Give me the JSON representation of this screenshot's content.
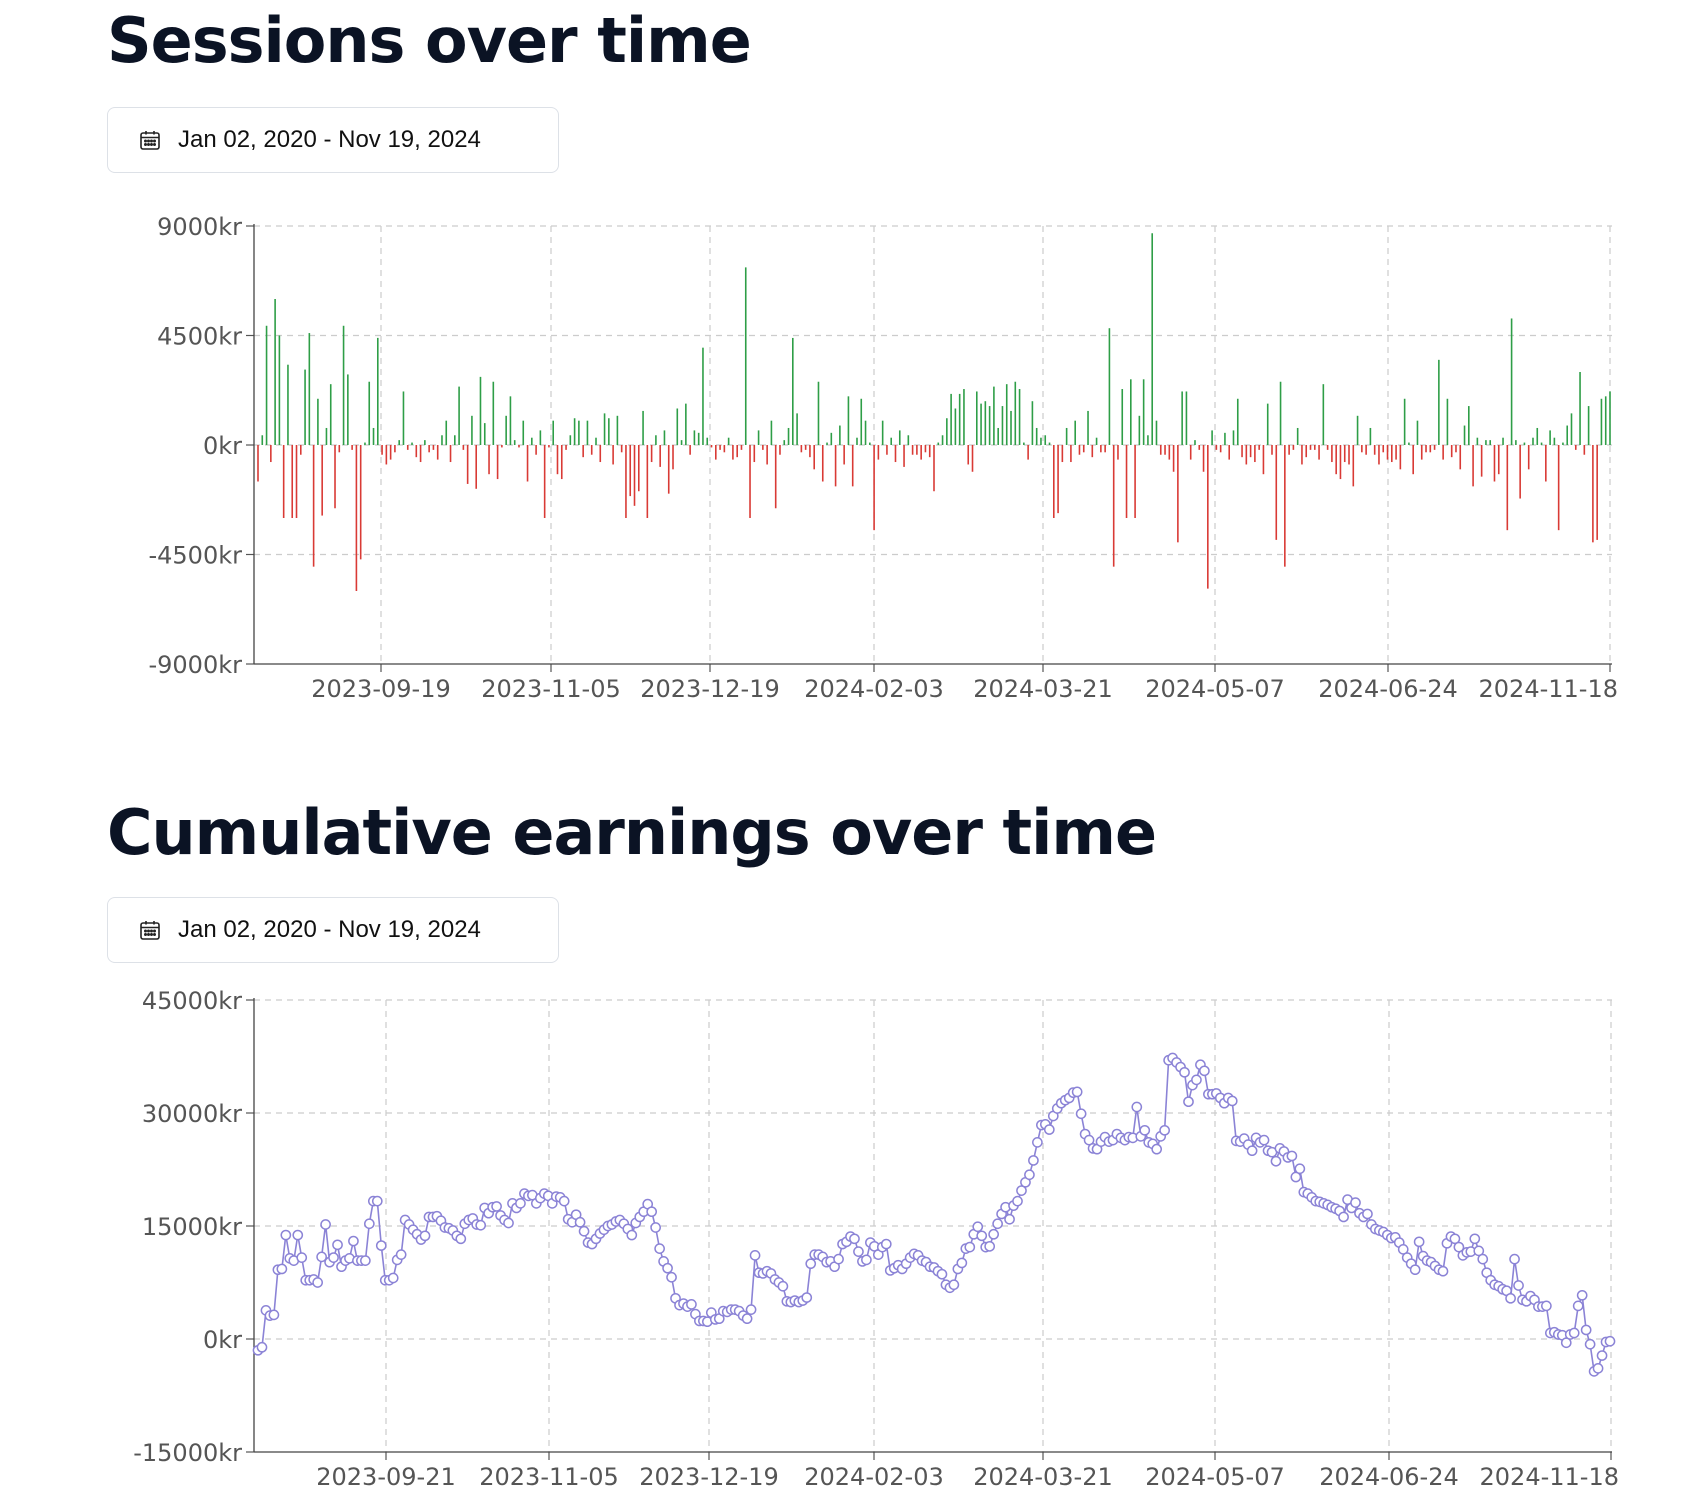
{
  "sessions": {
    "title": "Sessions over time",
    "date_range": "Jan 02, 2020 - Nov 19, 2024"
  },
  "cumulative": {
    "title": "Cumulative earnings over time",
    "date_range": "Jan 02, 2020 - Nov 19, 2024"
  },
  "icons": {
    "date_picker": "calendar-icon"
  },
  "colors": {
    "positive": "#2e9e47",
    "negative": "#d93a35",
    "line": "#8b83d6",
    "grid": "#cccccc"
  },
  "chart_data": [
    {
      "type": "bar",
      "title": "Sessions over time",
      "xlabel": "",
      "ylabel": "",
      "ylim": [
        -9000,
        9000
      ],
      "yticks": [
        "9000kr",
        "4500kr",
        "0kr",
        "-4500kr",
        "-9000kr"
      ],
      "xticks": [
        "2023-09-19",
        "2023-11-05",
        "2023-12-19",
        "2024-02-03",
        "2024-03-21",
        "2024-05-07",
        "2024-06-24",
        "2024-11-18"
      ],
      "grid": true,
      "values": [
        -1500,
        400,
        4900,
        -700,
        6000,
        4500,
        -3000,
        3300,
        -3000,
        -3000,
        -400,
        3100,
        4600,
        -5000,
        1900,
        -2900,
        700,
        2500,
        -2600,
        -300,
        4900,
        2900,
        -200,
        -6000,
        -4700,
        100,
        2600,
        700,
        4400,
        -400,
        -800,
        -600,
        -300,
        200,
        2200,
        -200,
        100,
        -500,
        -700,
        200,
        -300,
        -200,
        -600,
        400,
        1000,
        -700,
        400,
        2400,
        -200,
        -1600,
        1200,
        -1800,
        2800,
        900,
        -1200,
        2600,
        -1400,
        -100,
        1200,
        2000,
        200,
        -100,
        1000,
        -1500,
        300,
        -400,
        600,
        -3000,
        -100,
        1000,
        -1200,
        -1400,
        -200,
        400,
        1100,
        1000,
        -500,
        1000,
        -400,
        300,
        -700,
        1300,
        1100,
        -800,
        1200,
        -300,
        -3000,
        -2100,
        -2500,
        -1900,
        1400,
        -3000,
        -700,
        400,
        -900,
        600,
        -2000,
        -1000,
        1500,
        200,
        1700,
        -400,
        600,
        500,
        4000,
        300,
        -100,
        -600,
        -200,
        -300,
        300,
        -600,
        -500,
        -200,
        7300,
        -3000,
        -700,
        600,
        -200,
        -800,
        1000,
        -2600,
        -400,
        200,
        700,
        4400,
        1300,
        -300,
        -200,
        -500,
        -1000,
        2600,
        -1500,
        100,
        500,
        -1700,
        800,
        -800,
        2000,
        -1700,
        300,
        1900,
        1000,
        100,
        -3500,
        -600,
        1000,
        -400,
        300,
        -700,
        600,
        -900,
        400,
        -400,
        -400,
        -600,
        -300,
        -500,
        -1900,
        100,
        400,
        1100,
        2100,
        1500,
        2100,
        2300,
        -800,
        -1100,
        2200,
        1700,
        1800,
        1600,
        2400,
        700,
        1600,
        2500,
        1400,
        2600,
        2300,
        100,
        -600,
        1800,
        700,
        300,
        400,
        100,
        -3000,
        -2800,
        -700,
        700,
        -700,
        1000,
        -400,
        -300,
        1400,
        -500,
        300,
        -300,
        -300,
        4800,
        -5000,
        -600,
        2300,
        -3000,
        2700,
        -3000,
        1200,
        2700,
        400,
        8700,
        1000,
        -400,
        -400,
        -600,
        -1100,
        -4000,
        2200,
        2200,
        -600,
        200,
        -200,
        -1100,
        -5900,
        600,
        -200,
        -300,
        500,
        -600,
        600,
        1900,
        -500,
        -800,
        -500,
        -700,
        -200,
        -1200,
        1700,
        -400,
        -3900,
        2600,
        -5000,
        -400,
        -200,
        700,
        -800,
        -500,
        -200,
        -200,
        -600,
        2500,
        -200,
        -700,
        -1200,
        -1400,
        -700,
        -800,
        -1700,
        1200,
        -300,
        -400,
        700,
        -400,
        -800,
        -300,
        -600,
        -700,
        -600,
        -1000,
        1900,
        100,
        -1200,
        1000,
        -600,
        -300,
        -300,
        -200,
        3500,
        -600,
        1900,
        -500,
        -300,
        -1000,
        800,
        1600,
        -1700,
        300,
        -1300,
        200,
        200,
        -1500,
        -1200,
        300,
        -3500,
        5200,
        200,
        -2200,
        100,
        -1000,
        300,
        700,
        100,
        -1500,
        600,
        300,
        -3500,
        100,
        800,
        1300,
        -200,
        3000,
        -400,
        1600,
        -4000,
        -3900,
        1900,
        2000,
        2200
      ]
    },
    {
      "type": "line",
      "title": "Cumulative earnings over time",
      "xlabel": "",
      "ylabel": "",
      "ylim": [
        -15000,
        45000
      ],
      "yticks": [
        "45000kr",
        "30000kr",
        "15000kr",
        "0kr",
        "-15000kr"
      ],
      "xticks": [
        "2023-09-21",
        "2023-11-05",
        "2023-12-19",
        "2024-02-03",
        "2024-03-21",
        "2024-05-07",
        "2024-06-24",
        "2024-11-18"
      ],
      "grid": true,
      "markers": true,
      "values": [
        -1500,
        -1100,
        3800,
        3100,
        3200,
        9200,
        9300,
        13800,
        10700,
        10400,
        13800,
        10800,
        7800,
        7800,
        7900,
        7500,
        10900,
        15200,
        10200,
        10800,
        12500,
        9600,
        10400,
        10700,
        13000,
        10400,
        10400,
        10400,
        15300,
        18300,
        18300,
        12400,
        7800,
        7800,
        8100,
        10500,
        11200,
        15800,
        15200,
        14500,
        13900,
        13200,
        13700,
        16200,
        16200,
        16300,
        15700,
        14800,
        14700,
        14400,
        13700,
        13300,
        15300,
        15800,
        16000,
        15200,
        15100,
        17400,
        16700,
        17500,
        17600,
        16400,
        15800,
        15400,
        18000,
        17400,
        18000,
        19300,
        19000,
        19100,
        18000,
        18700,
        19300,
        19000,
        18000,
        18900,
        18800,
        18300,
        15900,
        15500,
        16500,
        15500,
        14300,
        12800,
        12600,
        13300,
        14000,
        14500,
        15000,
        15200,
        15600,
        15800,
        15300,
        14600,
        13800,
        15400,
        16200,
        16900,
        17900,
        16900,
        14800,
        12000,
        10300,
        9400,
        8200,
        5400,
        4500,
        4700,
        4300,
        4600,
        3300,
        2400,
        2400,
        2300,
        3500,
        2600,
        2700,
        3700,
        3600,
        3900,
        3900,
        3700,
        3100,
        2700,
        3900,
        11100,
        8800,
        8700,
        9000,
        8700,
        7900,
        7500,
        7000,
        5000,
        4900,
        5100,
        4900,
        5100,
        5500,
        10000,
        11200,
        11200,
        10900,
        10200,
        10300,
        9600,
        10600,
        12600,
        12900,
        13600,
        13300,
        11600,
        10300,
        10500,
        12800,
        12300,
        11200,
        12200,
        12600,
        9100,
        9400,
        9800,
        9300,
        10000,
        10800,
        11300,
        11100,
        10400,
        10200,
        9600,
        9500,
        9000,
        8600,
        7200,
        6800,
        7200,
        9300,
        10100,
        12000,
        12200,
        13900,
        14900,
        13700,
        12200,
        12300,
        13900,
        15300,
        16600,
        17500,
        15900,
        17700,
        18300,
        19700,
        20800,
        21800,
        23700,
        26100,
        28400,
        28500,
        27800,
        29600,
        30600,
        31300,
        31700,
        32000,
        32700,
        32800,
        29900,
        27200,
        26400,
        25300,
        25200,
        26200,
        26800,
        26200,
        26400,
        27200,
        26700,
        26400,
        26800,
        26700,
        30800,
        26900,
        27700,
        26100,
        25900,
        25200,
        26900,
        27700,
        37000,
        37300,
        36700,
        36100,
        35400,
        31500,
        33700,
        34400,
        36400,
        35600,
        32500,
        32500,
        32600,
        32000,
        31300,
        32000,
        31600,
        26300,
        26200,
        26600,
        25800,
        25000,
        26700,
        26100,
        26400,
        25000,
        24800,
        23600,
        25300,
        24900,
        24100,
        24300,
        21500,
        22600,
        19500,
        19300,
        18800,
        18300,
        18200,
        18000,
        17800,
        17500,
        17300,
        17000,
        16200,
        18500,
        17400,
        18100,
        16700,
        16200,
        16600,
        15200,
        14600,
        14400,
        14200,
        13800,
        13400,
        13500,
        12800,
        11900,
        10800,
        10000,
        9200,
        12900,
        11000,
        10400,
        10200,
        9700,
        9200,
        9000,
        12700,
        13600,
        13300,
        12200,
        11100,
        11500,
        11600,
        13300,
        11700,
        10600,
        8800,
        7800,
        7200,
        7000,
        6600,
        6400,
        5400,
        10600,
        7100,
        5200,
        5000,
        5700,
        5200,
        4300,
        4300,
        4400,
        800,
        900,
        600,
        500,
        -500,
        600,
        800,
        4400,
        5800,
        1200,
        -700,
        -4300,
        -3900,
        -2200,
        -400,
        -300
      ]
    }
  ]
}
